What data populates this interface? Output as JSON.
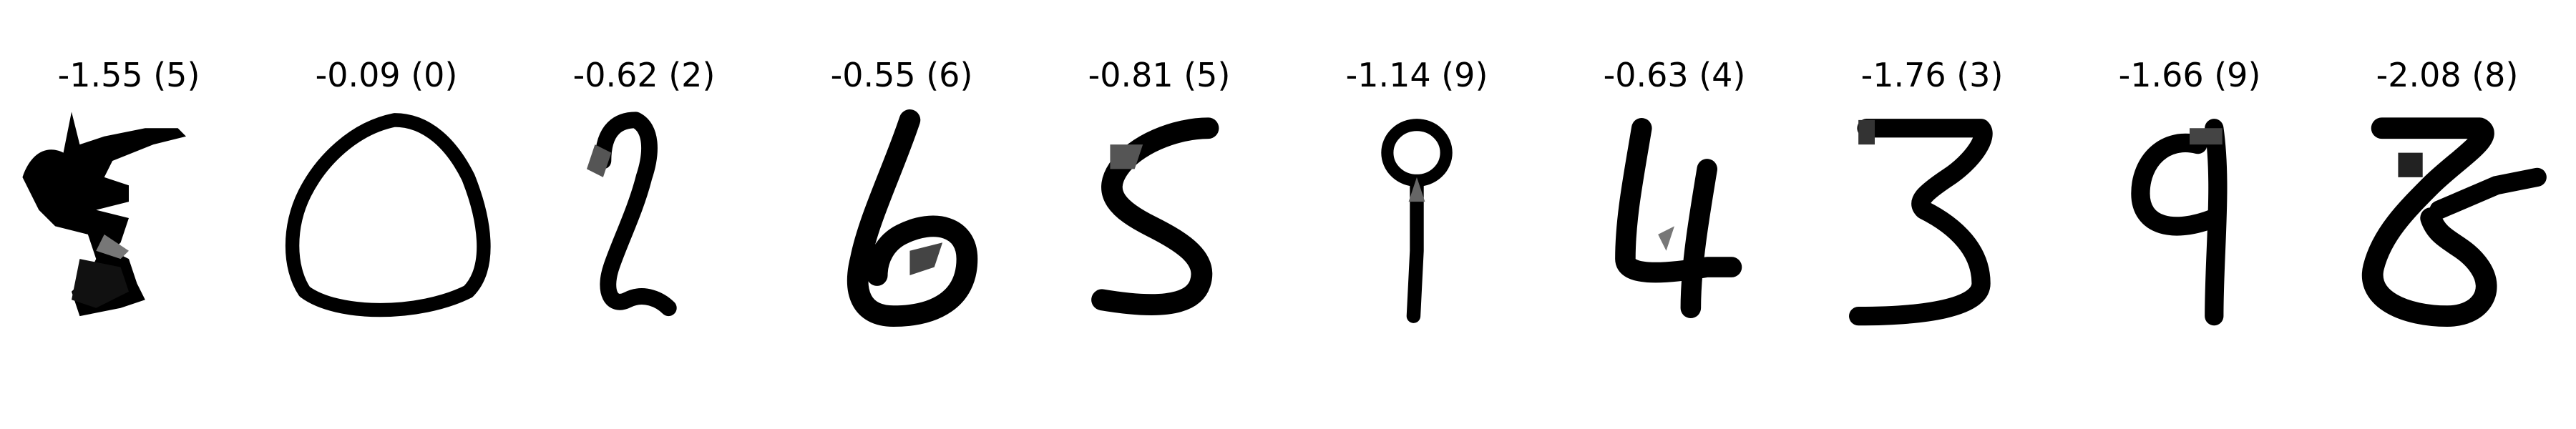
{
  "samples": [
    {
      "score": "-1.55",
      "label": "5",
      "caption": "-1.55 (5)"
    },
    {
      "score": "-0.09",
      "label": "0",
      "caption": "-0.09 (0)"
    },
    {
      "score": "-0.62",
      "label": "2",
      "caption": "-0.62 (2)"
    },
    {
      "score": "-0.55",
      "label": "6",
      "caption": "-0.55 (6)"
    },
    {
      "score": "-0.81",
      "label": "5",
      "caption": "-0.81 (5)"
    },
    {
      "score": "-1.14",
      "label": "9",
      "caption": "-1.14 (9)"
    },
    {
      "score": "-0.63",
      "label": "4",
      "caption": "-0.63 (4)"
    },
    {
      "score": "-1.76",
      "label": "3",
      "caption": "-1.76 (3)"
    },
    {
      "score": "-1.66",
      "label": "9",
      "caption": "-1.66 (9)"
    },
    {
      "score": "-2.08",
      "label": "8",
      "caption": "-2.08 (8)"
    }
  ],
  "colors": {
    "ink": "#000000",
    "background": "#ffffff"
  }
}
